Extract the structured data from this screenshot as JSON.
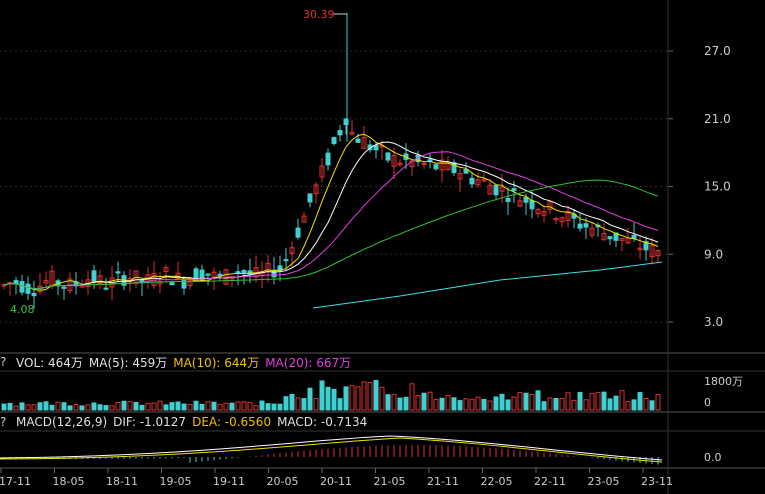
{
  "main": {
    "peak_label": "30.39",
    "min_label": "4.08",
    "y_ticks": [
      "27.0",
      "21.0",
      "15.0",
      "9.0",
      "3.0"
    ]
  },
  "vol": {
    "help": "?",
    "items": [
      {
        "label": "VOL: 464万",
        "color": "#e0e0e0"
      },
      {
        "label": "MA(5): 459万",
        "color": "#e0e0e0"
      },
      {
        "label": "MA(10): 644万",
        "color": "#f0c000"
      },
      {
        "label": "MA(20): 667万",
        "color": "#e040e0"
      }
    ],
    "y_ticks": [
      "1800万",
      "0"
    ]
  },
  "macd": {
    "help": "?",
    "items": [
      {
        "label": "MACD(12,26,9)",
        "color": "#e0e0e0"
      },
      {
        "label": "DIF: -1.0127",
        "color": "#e0e0e0"
      },
      {
        "label": "DEA: -0.6560",
        "color": "#f0c000"
      },
      {
        "label": "MACD: -0.7134",
        "color": "#e0e0e0"
      }
    ],
    "y_ticks": [
      "0.0"
    ]
  },
  "x_labels": [
    "17-11",
    "18-05",
    "18-11",
    "19-05",
    "19-11",
    "20-05",
    "20-11",
    "21-05",
    "21-11",
    "22-05",
    "22-11",
    "23-05",
    "23-11"
  ],
  "colors": {
    "up": "#e03030",
    "down": "#40d0d0",
    "ma5": "#ffffff",
    "ma10": "#f0e000",
    "ma20": "#e040e0",
    "ma60": "#30c030",
    "ma120": "#40e0e0"
  }
}
